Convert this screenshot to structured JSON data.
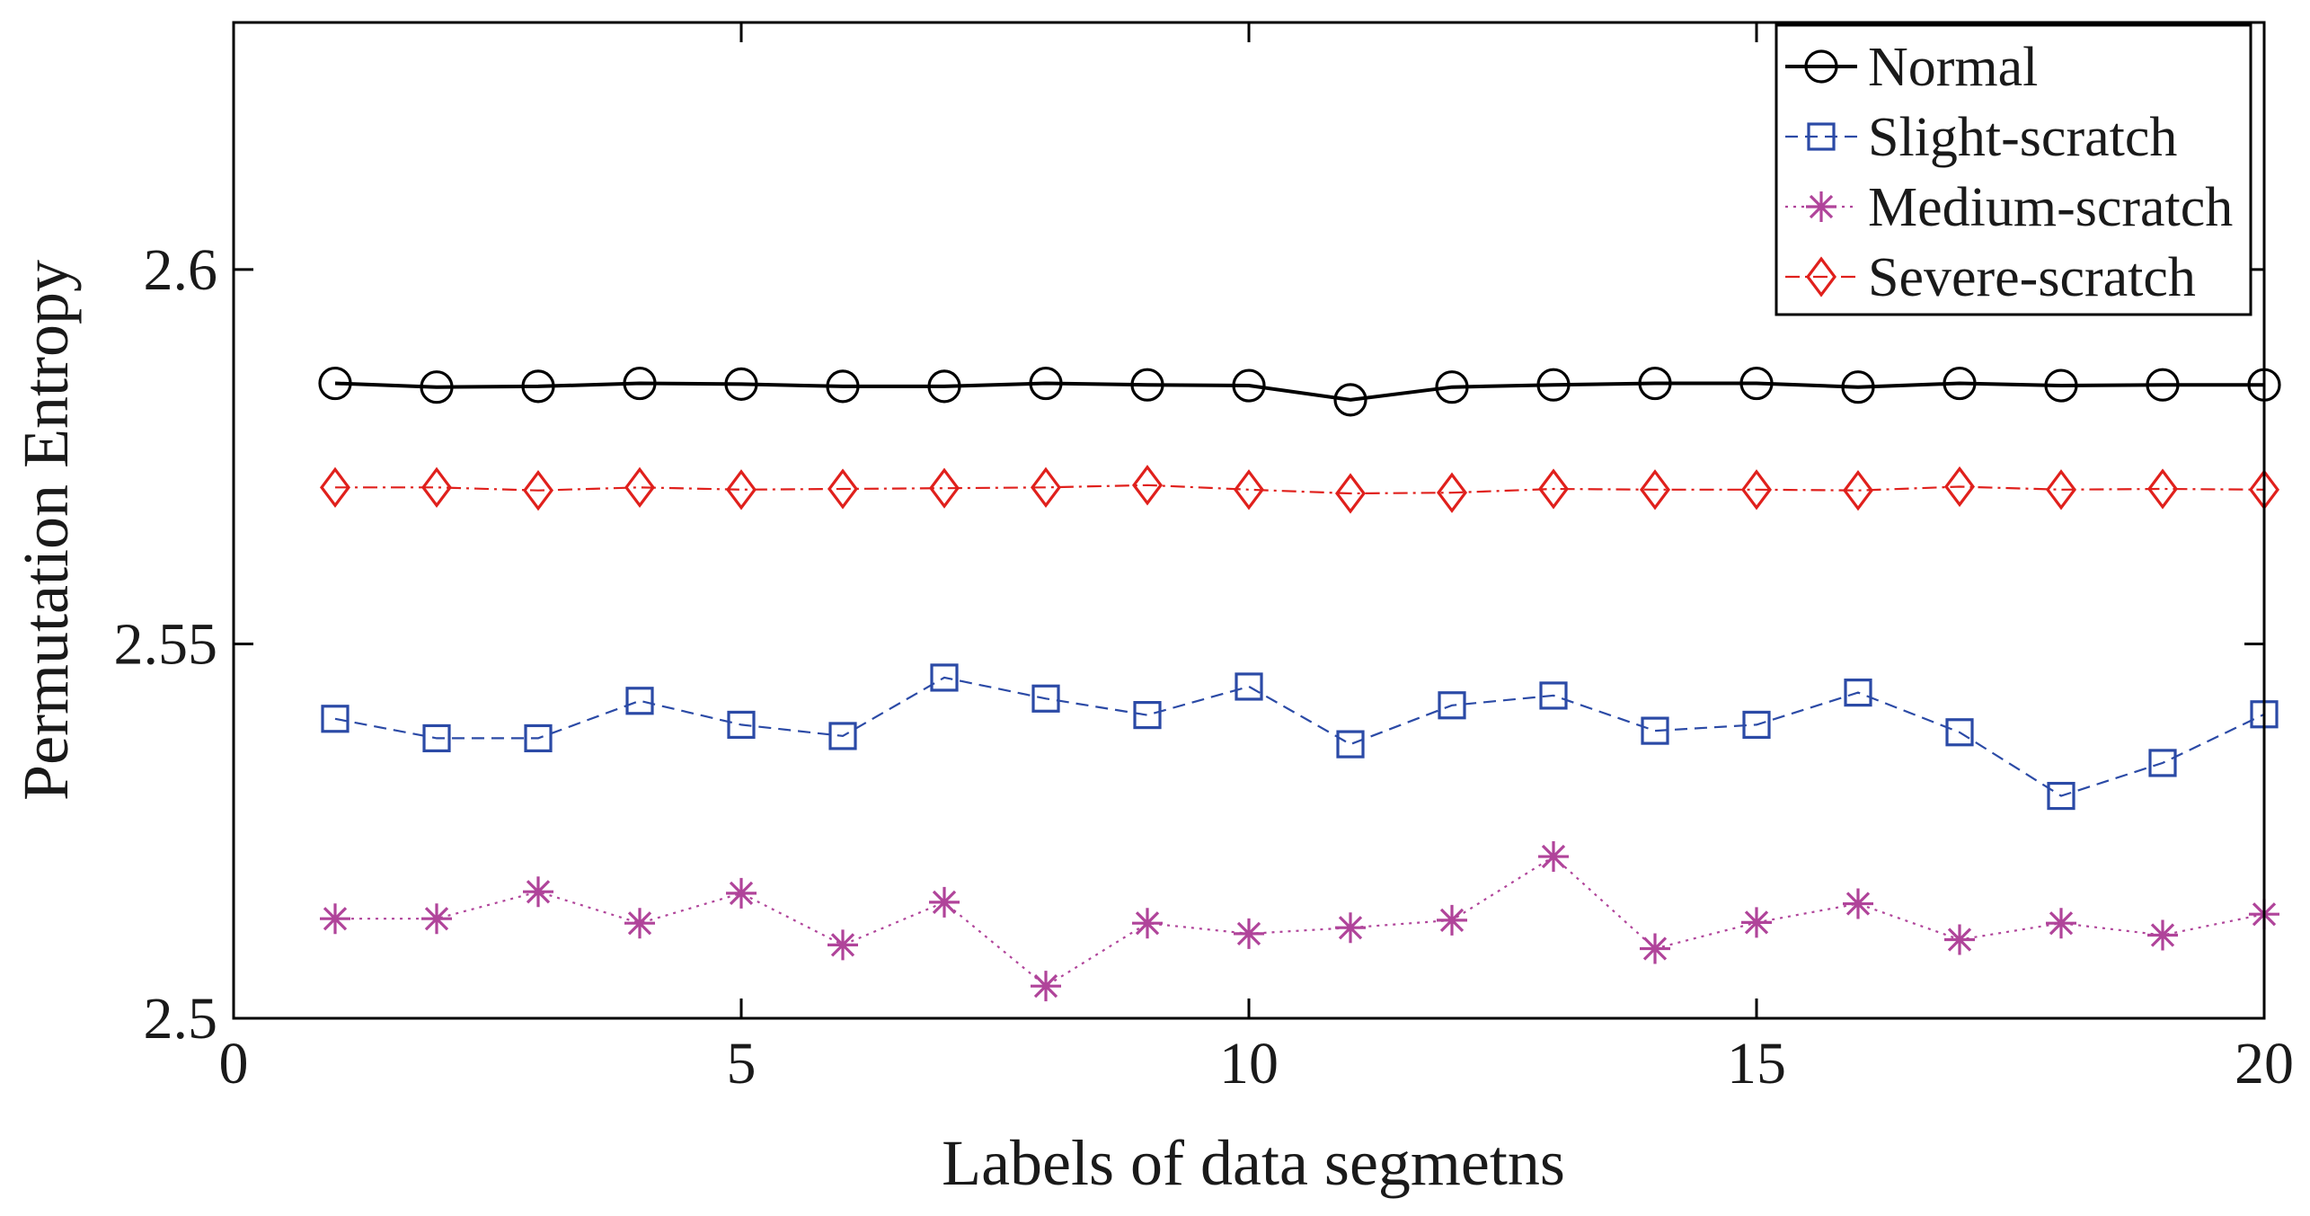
{
  "chart_data": {
    "type": "line",
    "title": "",
    "xlabel": "Labels of data segmetns",
    "ylabel": "Permutation Entropy",
    "xlim": [
      0,
      20
    ],
    "ylim": [
      2.5,
      2.633
    ],
    "xticks": [
      0,
      5,
      10,
      15,
      20
    ],
    "xtick_labels": [
      "0",
      "5",
      "10",
      "15",
      "20"
    ],
    "yticks": [
      2.5,
      2.55,
      2.6
    ],
    "ytick_labels": [
      "2.5",
      "2.55",
      "2.6"
    ],
    "grid": false,
    "legend_position": "top-right",
    "x": [
      1,
      2,
      3,
      4,
      5,
      6,
      7,
      8,
      9,
      10,
      11,
      12,
      13,
      14,
      15,
      16,
      17,
      18,
      19,
      20
    ],
    "series": [
      {
        "name": "Normal",
        "color": "#000000",
        "marker": "circle",
        "line": "solid",
        "values": [
          2.5848,
          2.5843,
          2.5844,
          2.5848,
          2.5847,
          2.5844,
          2.5844,
          2.5848,
          2.5846,
          2.5845,
          2.5826,
          2.5843,
          2.5846,
          2.5848,
          2.5848,
          2.5843,
          2.5848,
          2.5845,
          2.5846,
          2.5846
        ]
      },
      {
        "name": "Slight-scratch",
        "color": "#2b4aa6",
        "marker": "square",
        "line": "dashed",
        "values": [
          2.54,
          2.5374,
          2.5374,
          2.5424,
          2.5392,
          2.5377,
          2.5455,
          2.5427,
          2.5405,
          2.5443,
          2.5366,
          2.5418,
          2.5431,
          2.5384,
          2.5392,
          2.5435,
          2.5382,
          2.5297,
          2.5341,
          2.5406
        ]
      },
      {
        "name": "Medium-scratch",
        "color": "#b0449a",
        "marker": "star",
        "line": "dotted",
        "values": [
          2.5133,
          2.5133,
          2.5169,
          2.5127,
          2.5167,
          2.5098,
          2.5155,
          2.5043,
          2.5127,
          2.5113,
          2.5121,
          2.5131,
          2.5216,
          2.5093,
          2.5128,
          2.5153,
          2.5105,
          2.5127,
          2.5111,
          2.5139
        ]
      },
      {
        "name": "Severe-scratch",
        "color": "#e0201c",
        "marker": "diamond",
        "line": "dashdot",
        "values": [
          2.5709,
          2.5709,
          2.5705,
          2.5709,
          2.5706,
          2.5707,
          2.5708,
          2.5709,
          2.5712,
          2.5706,
          2.5701,
          2.5702,
          2.5707,
          2.5706,
          2.5706,
          2.5705,
          2.571,
          2.5706,
          2.5707,
          2.5706
        ]
      }
    ]
  }
}
